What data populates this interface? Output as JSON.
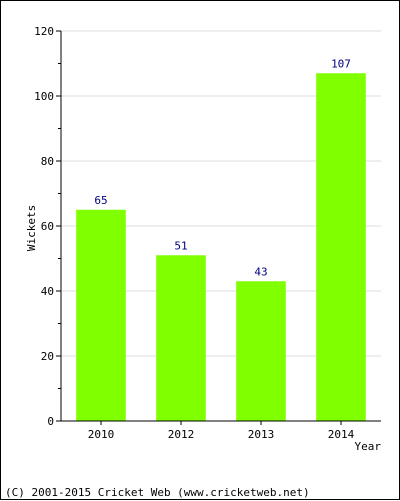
{
  "chart_data": {
    "type": "bar",
    "categories": [
      "2010",
      "2012",
      "2013",
      "2014"
    ],
    "values": [
      65,
      51,
      43,
      107
    ],
    "data_labels": [
      "65",
      "51",
      "43",
      "107"
    ],
    "title": "",
    "xlabel": "Year",
    "ylabel": "Wickets",
    "ylim": [
      0,
      120
    ],
    "yticks": [
      "0",
      "20",
      "40",
      "60",
      "80",
      "100",
      "120"
    ],
    "grid": true,
    "bar_color": "#80ff00",
    "label_color": "#000080"
  },
  "footer": {
    "copyright": "(C) 2001-2015 Cricket Web (www.cricketweb.net)"
  }
}
